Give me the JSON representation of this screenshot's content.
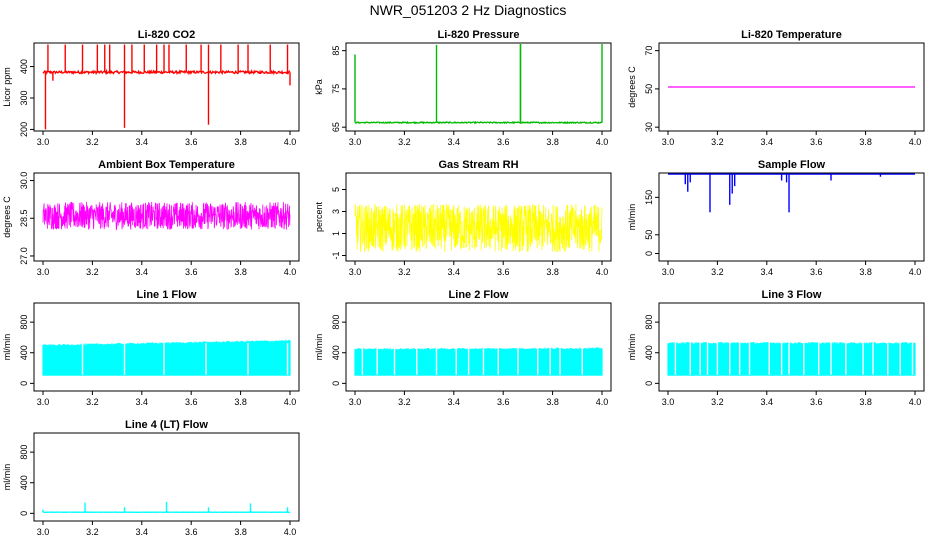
{
  "title": "NWR_051203  2 Hz Diagnostics",
  "chart_data": [
    {
      "type": "line",
      "title": "Li-820 CO2",
      "xlabel": "",
      "ylabel": "Licor ppm",
      "xlim": [
        3.0,
        4.0
      ],
      "ylim": [
        195,
        475
      ],
      "xticks": [
        3.0,
        3.2,
        3.4,
        3.6,
        3.8,
        4.0
      ],
      "xtick_labels": [
        "3.0",
        "3.2",
        "3.4",
        "3.6",
        "3.8",
        "4.0"
      ],
      "yticks": [
        200,
        300,
        400
      ],
      "ytick_labels": [
        "200",
        "300",
        "400"
      ],
      "color": "#ff0000",
      "series": [
        {
          "name": "CO2",
          "baseline": 382,
          "noise": 4,
          "spikes": [
            {
              "x": 3.01,
              "y": 200
            },
            {
              "x": 3.02,
              "y": 470
            },
            {
              "x": 3.04,
              "y": 355
            },
            {
              "x": 3.09,
              "y": 470
            },
            {
              "x": 3.16,
              "y": 470
            },
            {
              "x": 3.22,
              "y": 470
            },
            {
              "x": 3.25,
              "y": 470
            },
            {
              "x": 3.27,
              "y": 470
            },
            {
              "x": 3.33,
              "y": 205
            },
            {
              "x": 3.33,
              "y": 470
            },
            {
              "x": 3.36,
              "y": 470
            },
            {
              "x": 3.41,
              "y": 470
            },
            {
              "x": 3.46,
              "y": 470
            },
            {
              "x": 3.49,
              "y": 470
            },
            {
              "x": 3.51,
              "y": 470
            },
            {
              "x": 3.58,
              "y": 470
            },
            {
              "x": 3.64,
              "y": 470
            },
            {
              "x": 3.67,
              "y": 470
            },
            {
              "x": 3.67,
              "y": 215
            },
            {
              "x": 3.72,
              "y": 470
            },
            {
              "x": 3.79,
              "y": 470
            },
            {
              "x": 3.83,
              "y": 470
            },
            {
              "x": 3.92,
              "y": 470
            },
            {
              "x": 3.99,
              "y": 470
            },
            {
              "x": 4.0,
              "y": 340
            }
          ]
        }
      ]
    },
    {
      "type": "line",
      "title": "Li-820 Pressure",
      "xlabel": "",
      "ylabel": "kPa",
      "xlim": [
        3.0,
        4.0
      ],
      "ylim": [
        64,
        87
      ],
      "xticks": [
        3.0,
        3.2,
        3.4,
        3.6,
        3.8,
        4.0
      ],
      "xtick_labels": [
        "3.0",
        "3.2",
        "3.4",
        "3.6",
        "3.8",
        "4.0"
      ],
      "yticks": [
        65,
        75,
        85
      ],
      "ytick_labels": [
        "65",
        "75",
        "85"
      ],
      "color": "#00bb00",
      "series": [
        {
          "name": "Pressure",
          "baseline": 66.2,
          "noise": 0.15,
          "spikes": [
            {
              "x": 3.0,
              "y": 84
            },
            {
              "x": 3.33,
              "y": 86.5
            },
            {
              "x": 3.67,
              "y": 86.8
            },
            {
              "x": 3.67,
              "y": 86.8
            },
            {
              "x": 4.0,
              "y": 86.8
            }
          ]
        }
      ]
    },
    {
      "type": "line",
      "title": "Li-820 Temperature",
      "xlabel": "",
      "ylabel": "degrees C",
      "xlim": [
        3.0,
        4.0
      ],
      "ylim": [
        28,
        74
      ],
      "xticks": [
        3.0,
        3.2,
        3.4,
        3.6,
        3.8,
        4.0
      ],
      "xtick_labels": [
        "3.0",
        "3.2",
        "3.4",
        "3.6",
        "3.8",
        "4.0"
      ],
      "yticks": [
        30,
        50,
        70
      ],
      "ytick_labels": [
        "30",
        "50",
        "70"
      ],
      "color": "#ff00ff",
      "series": [
        {
          "name": "Temperature",
          "baseline": 51,
          "noise": 0,
          "spikes": []
        }
      ]
    },
    {
      "type": "line",
      "title": "Ambient Box Temperature",
      "xlabel": "",
      "ylabel": "degrees C",
      "xlim": [
        3.0,
        4.0
      ],
      "ylim": [
        26.8,
        30.3
      ],
      "xticks": [
        3.0,
        3.2,
        3.4,
        3.6,
        3.8,
        4.0
      ],
      "xtick_labels": [
        "3.0",
        "3.2",
        "3.4",
        "3.6",
        "3.8",
        "4.0"
      ],
      "yticks": [
        27.0,
        28.5,
        30.0
      ],
      "ytick_labels": [
        "27.0",
        "28.5",
        "30.0"
      ],
      "color": "#ff00ff",
      "series": [
        {
          "name": "Box temperature",
          "baseline": 28.6,
          "noise": 0.55,
          "dense": true,
          "spikes": []
        }
      ]
    },
    {
      "type": "line",
      "title": "Gas Stream RH",
      "xlabel": "",
      "ylabel": "percent",
      "xlim": [
        3.0,
        4.0
      ],
      "ylim": [
        -1.5,
        6.5
      ],
      "xticks": [
        3.0,
        3.2,
        3.4,
        3.6,
        3.8,
        4.0
      ],
      "xtick_labels": [
        "3.0",
        "3.2",
        "3.4",
        "3.6",
        "3.8",
        "4.0"
      ],
      "yticks": [
        -1,
        1,
        3,
        5
      ],
      "ytick_labels": [
        "-1",
        "1",
        "3",
        "5"
      ],
      "color": "#ffff00",
      "series": [
        {
          "name": "RH",
          "baseline": 1.5,
          "noise": 2.2,
          "dense": true,
          "spikes": []
        }
      ]
    },
    {
      "type": "line",
      "title": "Sample Flow",
      "xlabel": "",
      "ylabel": "ml/min",
      "xlim": [
        3.0,
        4.0
      ],
      "ylim": [
        -20,
        215
      ],
      "xticks": [
        3.0,
        3.2,
        3.4,
        3.6,
        3.8,
        4.0
      ],
      "xtick_labels": [
        "3.0",
        "3.2",
        "3.4",
        "3.6",
        "3.8",
        "4.0"
      ],
      "yticks": [
        0,
        50,
        150
      ],
      "ytick_labels": [
        "0",
        "50",
        "150"
      ],
      "color": "#0000ff",
      "series": [
        {
          "name": "Sample flow",
          "baseline": 212,
          "noise": 0,
          "spikes": [
            {
              "x": 3.07,
              "y": 185
            },
            {
              "x": 3.08,
              "y": 165
            },
            {
              "x": 3.09,
              "y": 190
            },
            {
              "x": 3.17,
              "y": 110
            },
            {
              "x": 3.25,
              "y": 130
            },
            {
              "x": 3.26,
              "y": 160
            },
            {
              "x": 3.27,
              "y": 180
            },
            {
              "x": 3.46,
              "y": 195
            },
            {
              "x": 3.48,
              "y": 190
            },
            {
              "x": 3.49,
              "y": 110
            },
            {
              "x": 3.66,
              "y": 195
            },
            {
              "x": 3.86,
              "y": 205
            }
          ]
        }
      ]
    },
    {
      "type": "line",
      "title": "Line 1 Flow",
      "xlabel": "",
      "ylabel": "ml/min",
      "xlim": [
        3.0,
        4.0
      ],
      "ylim": [
        -100,
        1050
      ],
      "xticks": [
        3.0,
        3.2,
        3.4,
        3.6,
        3.8,
        4.0
      ],
      "xtick_labels": [
        "3.0",
        "3.2",
        "3.4",
        "3.6",
        "3.8",
        "4.0"
      ],
      "yticks": [
        0,
        400,
        800
      ],
      "ytick_labels": [
        "0",
        "400",
        "800"
      ],
      "color": "#00ffff",
      "series": [
        {
          "name": "Line 1",
          "band_low": 100,
          "band_high_start": 500,
          "band_high_end": 560,
          "gaps": [
            3.16,
            3.33,
            3.49,
            3.66,
            3.83,
            3.99
          ]
        }
      ]
    },
    {
      "type": "line",
      "title": "Line 2 Flow",
      "xlabel": "",
      "ylabel": "ml/min",
      "xlim": [
        3.0,
        4.0
      ],
      "ylim": [
        -100,
        1050
      ],
      "xticks": [
        3.0,
        3.2,
        3.4,
        3.6,
        3.8,
        4.0
      ],
      "xtick_labels": [
        "3.0",
        "3.2",
        "3.4",
        "3.6",
        "3.8",
        "4.0"
      ],
      "yticks": [
        0,
        400,
        800
      ],
      "ytick_labels": [
        "0",
        "400",
        "800"
      ],
      "color": "#00ffff",
      "series": [
        {
          "name": "Line 2",
          "band_low": 100,
          "band_high_start": 450,
          "band_high_end": 460,
          "gaps": [
            3.03,
            3.09,
            3.16,
            3.25,
            3.33,
            3.41,
            3.46,
            3.52,
            3.58,
            3.66,
            3.74,
            3.79,
            3.83,
            3.92
          ]
        }
      ]
    },
    {
      "type": "line",
      "title": "Line 3 Flow",
      "xlabel": "",
      "ylabel": "ml/min",
      "xlim": [
        3.0,
        4.0
      ],
      "ylim": [
        -100,
        1050
      ],
      "xticks": [
        3.0,
        3.2,
        3.4,
        3.6,
        3.8,
        4.0
      ],
      "xtick_labels": [
        "3.0",
        "3.2",
        "3.4",
        "3.6",
        "3.8",
        "4.0"
      ],
      "yticks": [
        0,
        400,
        800
      ],
      "ytick_labels": [
        "0",
        "400",
        "800"
      ],
      "color": "#00ffff",
      "series": [
        {
          "name": "Line 3",
          "band_low": 100,
          "band_high_start": 530,
          "band_high_end": 530,
          "gaps": [
            3.03,
            3.09,
            3.13,
            3.16,
            3.2,
            3.25,
            3.29,
            3.33,
            3.41,
            3.46,
            3.49,
            3.55,
            3.61,
            3.66,
            3.72,
            3.79,
            3.83,
            3.89,
            3.94,
            3.99
          ]
        }
      ]
    },
    {
      "type": "line",
      "title": "Line 4 (LT) Flow",
      "xlabel": "",
      "ylabel": "ml/min",
      "xlim": [
        3.0,
        4.0
      ],
      "ylim": [
        -100,
        1050
      ],
      "xticks": [
        3.0,
        3.2,
        3.4,
        3.6,
        3.8,
        4.0
      ],
      "xtick_labels": [
        "3.0",
        "3.2",
        "3.4",
        "3.6",
        "3.8",
        "4.0"
      ],
      "yticks": [
        0,
        400,
        800
      ],
      "ytick_labels": [
        "0",
        "400",
        "800"
      ],
      "color": "#00ffff",
      "series": [
        {
          "name": "Line 4 (LT)",
          "baseline": 15,
          "noise": 2,
          "spikes": [
            {
              "x": 3.0,
              "y": 50
            },
            {
              "x": 3.17,
              "y": 140
            },
            {
              "x": 3.33,
              "y": 80
            },
            {
              "x": 3.5,
              "y": 150
            },
            {
              "x": 3.67,
              "y": 80
            },
            {
              "x": 3.84,
              "y": 130
            },
            {
              "x": 3.99,
              "y": 80
            }
          ]
        }
      ]
    }
  ]
}
